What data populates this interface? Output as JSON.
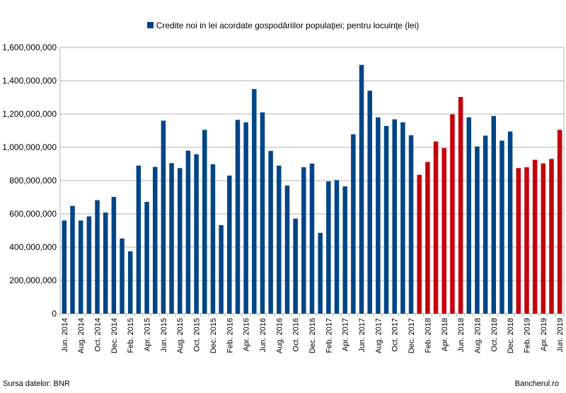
{
  "chart_data": {
    "type": "bar",
    "legend": "Credite noi in lei acordate gospodăriilor populaţiei; pentru locuinţe (lei)",
    "legend_position": "top",
    "grid": true,
    "ylim": [
      0,
      1600000000
    ],
    "yticks": [
      0,
      200000000,
      400000000,
      600000000,
      800000000,
      1000000000,
      1200000000,
      1400000000,
      1600000000
    ],
    "ytick_labels": [
      "0",
      "200,000,000",
      "400,000,000",
      "600,000,000",
      "800,000,000",
      "1,000,000,000",
      "1,200,000,000",
      "1,400,000,000",
      "1,600,000,000"
    ],
    "colors": {
      "primary": "#004586",
      "highlight": "#c5000b"
    },
    "categories": [
      "Jun. 2014",
      "Jul. 2014",
      "Aug. 2014",
      "Sep. 2014",
      "Oct. 2014",
      "Nov. 2014",
      "Dec. 2014",
      "Jan. 2015",
      "Feb. 2015",
      "Mar. 2015",
      "Apr. 2015",
      "May 2015",
      "Jun. 2015",
      "Jul. 2015",
      "Aug. 2015",
      "Sep. 2015",
      "Oct. 2015",
      "Nov. 2015",
      "Dec. 2015",
      "Jan. 2016",
      "Feb. 2016",
      "Mar. 2016",
      "Apr. 2016",
      "May 2016",
      "Jun. 2016",
      "Jul. 2016",
      "Aug. 2016",
      "Sep. 2016",
      "Oct. 2016",
      "Nov. 2016",
      "Dec. 2016",
      "Jan. 2017",
      "Feb. 2017",
      "Mar. 2017",
      "Apr. 2017",
      "May 2017",
      "Jun. 2017",
      "Jul. 2017",
      "Aug. 2017",
      "Sep. 2017",
      "Oct. 2017",
      "Nov. 2017",
      "Dec. 2017",
      "Jan. 2018",
      "Feb. 2018",
      "Mar. 2018",
      "Apr. 2018",
      "May 2018",
      "Jun. 2018",
      "Jul. 2018",
      "Aug. 2018",
      "Sep. 2018",
      "Oct. 2018",
      "Nov. 2018",
      "Dec. 2018",
      "Jan. 2019",
      "Feb. 2019",
      "Mar. 2019",
      "Apr. 2019",
      "May 2019",
      "Jun. 2019"
    ],
    "tick_labels": [
      "Jun. 2014",
      "",
      "Aug. 2014",
      "",
      "Oct. 2014",
      "",
      "Dec. 2014",
      "",
      "Feb. 2015",
      "",
      "Apr. 2015",
      "",
      "Jun. 2015",
      "",
      "Aug. 2015",
      "",
      "Oct. 2015",
      "",
      "Dec. 2015",
      "",
      "Feb. 2016",
      "",
      "Apr. 2016",
      "",
      "Jun. 2016",
      "",
      "Aug. 2016",
      "",
      "Oct. 2016",
      "",
      "Dec. 2016",
      "",
      "Feb. 2017",
      "",
      "Apr. 2017",
      "",
      "Jun. 2017",
      "",
      "Aug. 2017",
      "",
      "Oct. 2017",
      "",
      "Dec. 2017",
      "",
      "Feb. 2018",
      "",
      "Apr. 2018",
      "",
      "Jun. 2018",
      "",
      "Aug. 2018",
      "",
      "Oct. 2018",
      "",
      "Dec. 2018",
      "",
      "Feb. 2019",
      "",
      "Apr. 2019",
      "",
      "Jun. 2019"
    ],
    "values": [
      560000000,
      648000000,
      560000000,
      585000000,
      682000000,
      608000000,
      702000000,
      452000000,
      375000000,
      890000000,
      672000000,
      882000000,
      1160000000,
      905000000,
      875000000,
      980000000,
      958000000,
      1105000000,
      898000000,
      532000000,
      830000000,
      1165000000,
      1150000000,
      1350000000,
      1210000000,
      978000000,
      890000000,
      770000000,
      572000000,
      880000000,
      902000000,
      486000000,
      795000000,
      803000000,
      765000000,
      1078000000,
      1495000000,
      1340000000,
      1180000000,
      1128000000,
      1168000000,
      1150000000,
      1072000000,
      835000000,
      912000000,
      1035000000,
      995000000,
      1198000000,
      1302000000,
      1180000000,
      1005000000,
      1070000000,
      1188000000,
      1040000000,
      1095000000,
      875000000,
      880000000,
      925000000,
      903000000,
      930000000,
      1105000000
    ],
    "bar_colors": [
      "primary",
      "primary",
      "primary",
      "primary",
      "primary",
      "primary",
      "primary",
      "primary",
      "primary",
      "primary",
      "primary",
      "primary",
      "primary",
      "primary",
      "primary",
      "primary",
      "primary",
      "primary",
      "primary",
      "primary",
      "primary",
      "primary",
      "primary",
      "primary",
      "primary",
      "primary",
      "primary",
      "primary",
      "primary",
      "primary",
      "primary",
      "primary",
      "primary",
      "primary",
      "primary",
      "primary",
      "primary",
      "primary",
      "primary",
      "primary",
      "primary",
      "primary",
      "primary",
      "highlight",
      "highlight",
      "highlight",
      "highlight",
      "highlight",
      "highlight",
      "primary",
      "primary",
      "primary",
      "primary",
      "primary",
      "primary",
      "highlight",
      "highlight",
      "highlight",
      "highlight",
      "highlight",
      "highlight"
    ]
  },
  "footer": {
    "source": "Sursa datelor: BNR",
    "site": "Bancherul.ro"
  }
}
